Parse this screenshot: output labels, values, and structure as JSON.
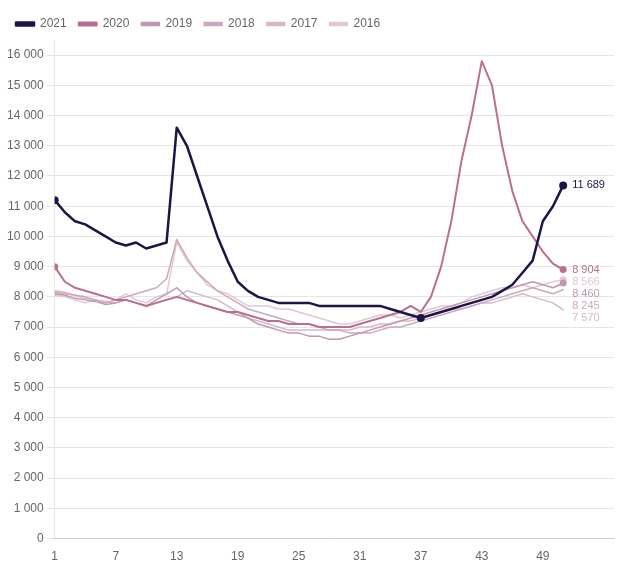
{
  "chart_data": {
    "type": "line",
    "x": [
      1,
      2,
      3,
      4,
      5,
      6,
      7,
      8,
      9,
      10,
      11,
      12,
      13,
      14,
      15,
      16,
      17,
      18,
      19,
      20,
      21,
      22,
      23,
      24,
      25,
      26,
      27,
      28,
      29,
      30,
      31,
      32,
      33,
      34,
      35,
      36,
      37,
      38,
      39,
      40,
      41,
      42,
      43,
      44,
      45,
      46,
      47,
      48,
      49,
      50,
      51
    ],
    "series": [
      {
        "name": "2016",
        "color": "#e2c8d2",
        "dots": [
          51
        ],
        "values": [
          8050,
          8000,
          7900,
          7800,
          7900,
          7800,
          7900,
          8100,
          7900,
          7800,
          8000,
          8100,
          9800,
          9200,
          8800,
          8400,
          8200,
          8100,
          7900,
          7700,
          7700,
          7700,
          7600,
          7600,
          7500,
          7400,
          7300,
          7200,
          7100,
          7100,
          7200,
          7300,
          7400,
          7400,
          7300,
          7400,
          7500,
          7600,
          7700,
          7700,
          7800,
          8000,
          8100,
          8200,
          8300,
          8300,
          8400,
          8300,
          8400,
          8500,
          8566
        ]
      },
      {
        "name": "2017",
        "color": "#d8b8c8",
        "dots": [],
        "values": [
          8200,
          8150,
          8050,
          7950,
          7900,
          7850,
          7800,
          7900,
          7800,
          7700,
          7800,
          7900,
          8000,
          8200,
          8100,
          8000,
          7900,
          7700,
          7500,
          7300,
          7200,
          7100,
          7000,
          6900,
          6900,
          6900,
          6900,
          6900,
          6900,
          6900,
          7000,
          7000,
          7100,
          7100,
          7200,
          7200,
          7300,
          7400,
          7500,
          7600,
          7600,
          7700,
          7800,
          7800,
          7900,
          8000,
          8100,
          8000,
          7900,
          7800,
          7570
        ]
      },
      {
        "name": "2018",
        "color": "#cca8bc",
        "dots": [],
        "values": [
          8150,
          8100,
          8050,
          8000,
          7900,
          7800,
          7900,
          8000,
          8100,
          8200,
          8300,
          8600,
          9900,
          9300,
          8800,
          8500,
          8200,
          8000,
          7800,
          7600,
          7500,
          7400,
          7300,
          7200,
          7100,
          7100,
          7000,
          6900,
          6900,
          6800,
          6800,
          6800,
          6900,
          7000,
          7000,
          7100,
          7200,
          7300,
          7400,
          7500,
          7600,
          7700,
          7800,
          7900,
          8000,
          8100,
          8200,
          8300,
          8200,
          8100,
          8245
        ]
      },
      {
        "name": "2019",
        "color": "#c098b0",
        "dots": [
          51
        ],
        "values": [
          8100,
          8050,
          7950,
          7900,
          7850,
          7750,
          7800,
          7900,
          7800,
          7700,
          7900,
          8100,
          8300,
          8000,
          7800,
          7700,
          7600,
          7500,
          7400,
          7300,
          7100,
          7000,
          6900,
          6800,
          6800,
          6700,
          6700,
          6600,
          6600,
          6700,
          6800,
          6900,
          7000,
          7100,
          7200,
          7300,
          7400,
          7500,
          7600,
          7700,
          7800,
          7900,
          8000,
          8100,
          8200,
          8300,
          8400,
          8500,
          8400,
          8300,
          8460
        ]
      },
      {
        "name": "2020",
        "color": "#b87090",
        "dots": [
          1,
          51
        ],
        "values": [
          9000,
          8500,
          8300,
          8200,
          8100,
          8000,
          7900,
          7900,
          7800,
          7700,
          7800,
          7900,
          8000,
          7900,
          7800,
          7700,
          7600,
          7500,
          7500,
          7400,
          7300,
          7200,
          7200,
          7100,
          7100,
          7100,
          7000,
          7000,
          7000,
          7000,
          7100,
          7200,
          7300,
          7400,
          7500,
          7700,
          7500,
          8000,
          9000,
          10500,
          12500,
          14000,
          15800,
          15000,
          13000,
          11500,
          10500,
          10000,
          9500,
          9100,
          8904
        ]
      },
      {
        "name": "2021",
        "color": "#1e1545",
        "dots": [
          1,
          37,
          51
        ],
        "values": [
          11200,
          10800,
          10500,
          10400,
          10200,
          10000,
          9800,
          9700,
          9800,
          9600,
          9700,
          9800,
          13600,
          13000,
          12000,
          11000,
          10000,
          9200,
          8500,
          8200,
          8000,
          7900,
          7800,
          7800,
          7800,
          7800,
          7700,
          7700,
          7700,
          7700,
          7700,
          7700,
          7700,
          7600,
          7500,
          7400,
          7300,
          7400,
          7500,
          7600,
          7700,
          7800,
          7900,
          8000,
          8200,
          8400,
          8800,
          9200,
          10500,
          11000,
          11689
        ]
      }
    ],
    "annotations": [
      {
        "text": "11 689",
        "y": 11689,
        "series": "2021"
      },
      {
        "text": "8 904",
        "y": 8904,
        "series": "2020"
      },
      {
        "text": "8 566",
        "y": 8566,
        "series": "2016"
      },
      {
        "text": "8 460",
        "y": 8460,
        "series": "2019"
      },
      {
        "text": "8 245",
        "y": 8245,
        "series": "2018"
      },
      {
        "text": "7 570",
        "y": 7570,
        "series": "2017"
      }
    ],
    "xlim": [
      1,
      56
    ],
    "xticks": [
      1,
      7,
      13,
      19,
      25,
      31,
      37,
      43,
      49
    ],
    "ylim": [
      0,
      16500
    ],
    "yticks": [
      0,
      {
        "value": 1000,
        "label": "1 000"
      },
      {
        "value": 2000,
        "label": "2 000"
      },
      {
        "value": 3000,
        "label": "3 000"
      },
      {
        "value": 4000,
        "label": "4 000"
      },
      {
        "value": 5000,
        "label": "5 000"
      },
      {
        "value": 6000,
        "label": "6 000"
      },
      {
        "value": 7000,
        "label": "7 000"
      },
      {
        "value": 8000,
        "label": "8 000"
      },
      {
        "value": 9000,
        "label": "9 000"
      },
      {
        "value": 10000,
        "label": "10 000"
      },
      {
        "value": 11000,
        "label": "11 000"
      },
      {
        "value": 12000,
        "label": "12 000"
      },
      {
        "value": 13000,
        "label": "13 000"
      },
      {
        "value": 14000,
        "label": "14 000"
      },
      {
        "value": 15000,
        "label": "15 000"
      },
      {
        "value": 16000,
        "label": "16 000"
      }
    ],
    "grid": "y",
    "legend": "upper left"
  }
}
